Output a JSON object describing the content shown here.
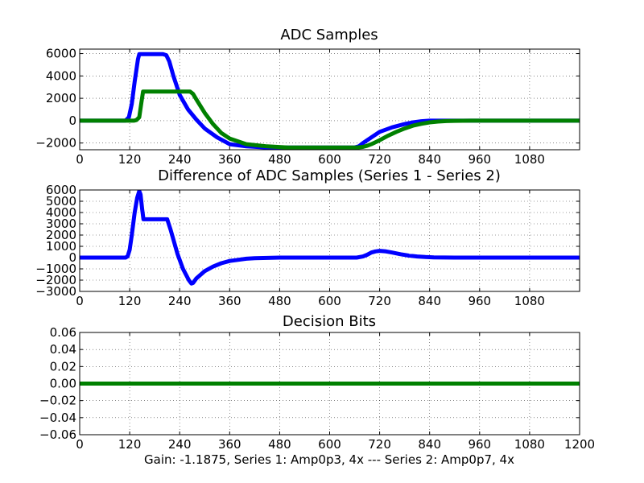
{
  "figure": {
    "xlabel": "Gain: -1.1875, Series 1: Amp0p3, 4x --- Series 2: Amp0p7, 4x"
  },
  "chart_data": [
    {
      "type": "line",
      "title": "ADC Samples",
      "xlim": [
        0,
        1200
      ],
      "ylim": [
        -2600,
        6400
      ],
      "xticks": [
        0,
        120,
        240,
        360,
        480,
        600,
        720,
        840,
        960,
        1080
      ],
      "xtick_labels": [
        "0",
        "120",
        "240",
        "360",
        "480",
        "600",
        "720",
        "840",
        "960",
        "1080"
      ],
      "yticks": [
        -2000,
        0,
        2000,
        4000,
        6000
      ],
      "ytick_labels": [
        "−2000",
        "0",
        "2000",
        "4000",
        "6000"
      ],
      "grid": true,
      "series": [
        {
          "name": "Series 1",
          "color": "#0000ff",
          "x": [
            0,
            110,
            118,
            125,
            132,
            140,
            143,
            150,
            170,
            200,
            208,
            215,
            225,
            240,
            260,
            280,
            300,
            330,
            360,
            400,
            450,
            500,
            560,
            620,
            660,
            670,
            680,
            700,
            720,
            750,
            780,
            800,
            820,
            840,
            860,
            880,
            900,
            1200
          ],
          "y": [
            0,
            0,
            300,
            1500,
            3500,
            5500,
            5950,
            5950,
            5950,
            5950,
            5850,
            5300,
            4000,
            2300,
            1000,
            100,
            -700,
            -1500,
            -2100,
            -2300,
            -2400,
            -2400,
            -2400,
            -2400,
            -2400,
            -2300,
            -2000,
            -1500,
            -1000,
            -600,
            -300,
            -150,
            -50,
            0,
            0,
            0,
            0,
            0
          ]
        },
        {
          "name": "Series 2",
          "color": "#008000",
          "x": [
            0,
            130,
            136,
            143,
            148,
            152,
            160,
            200,
            240,
            265,
            272,
            280,
            300,
            320,
            340,
            360,
            400,
            450,
            500,
            560,
            620,
            665,
            680,
            690,
            700,
            720,
            740,
            760,
            780,
            800,
            820,
            840,
            860,
            880,
            900,
            940,
            1200
          ],
          "y": [
            0,
            0,
            50,
            300,
            1600,
            2600,
            2600,
            2600,
            2600,
            2600,
            2400,
            1900,
            700,
            -300,
            -1100,
            -1600,
            -2100,
            -2300,
            -2400,
            -2400,
            -2400,
            -2400,
            -2350,
            -2250,
            -2100,
            -1750,
            -1350,
            -1000,
            -700,
            -450,
            -280,
            -150,
            -80,
            -40,
            -15,
            0,
            0
          ]
        }
      ]
    },
    {
      "type": "line",
      "title": "Difference of ADC Samples (Series 1 - Series 2)",
      "xlim": [
        0,
        1200
      ],
      "ylim": [
        -3000,
        6000
      ],
      "xticks": [
        0,
        120,
        240,
        360,
        480,
        600,
        720,
        840,
        960,
        1080
      ],
      "xtick_labels": [
        "0",
        "120",
        "240",
        "360",
        "480",
        "600",
        "720",
        "840",
        "960",
        "1080"
      ],
      "yticks": [
        -3000,
        -2000,
        -1000,
        0,
        1000,
        2000,
        3000,
        4000,
        5000,
        6000
      ],
      "ytick_labels": [
        "−3000",
        "−2000",
        "−1000",
        "0",
        "1000",
        "2000",
        "3000",
        "4000",
        "5000",
        "6000"
      ],
      "grid": true,
      "series": [
        {
          "name": "Series 1 - Series 2",
          "color": "#0000ff",
          "x": [
            0,
            110,
            115,
            120,
            125,
            132,
            138,
            143,
            146,
            150,
            153,
            160,
            180,
            210,
            218,
            225,
            235,
            248,
            262,
            268,
            272,
            280,
            300,
            320,
            340,
            360,
            380,
            400,
            420,
            480,
            600,
            665,
            680,
            690,
            700,
            710,
            720,
            735,
            750,
            770,
            790,
            810,
            830,
            850,
            900,
            1200
          ],
          "y": [
            0,
            0,
            100,
            700,
            2000,
            4000,
            5300,
            5900,
            5600,
            4300,
            3400,
            3400,
            3400,
            3400,
            2500,
            1600,
            300,
            -1000,
            -2000,
            -2300,
            -2250,
            -1850,
            -1200,
            -800,
            -500,
            -300,
            -200,
            -100,
            -50,
            0,
            0,
            0,
            100,
            250,
            450,
            550,
            600,
            550,
            450,
            300,
            180,
            100,
            50,
            20,
            0,
            0
          ]
        }
      ]
    },
    {
      "type": "line",
      "title": "Decision Bits",
      "xlim": [
        0,
        1200
      ],
      "ylim": [
        -0.06,
        0.06
      ],
      "xticks": [
        0,
        120,
        240,
        360,
        480,
        600,
        720,
        840,
        960,
        1080,
        1200
      ],
      "xtick_labels": [
        "0",
        "120",
        "240",
        "360",
        "480",
        "600",
        "720",
        "840",
        "960",
        "1080",
        "1200"
      ],
      "yticks": [
        -0.06,
        -0.04,
        -0.02,
        0,
        0.02,
        0.04,
        0.06
      ],
      "ytick_labels": [
        "−0.06",
        "−0.04",
        "−0.02",
        "0.00",
        "0.02",
        "0.04",
        "0.06"
      ],
      "grid": true,
      "series": [
        {
          "name": "Decision",
          "color": "#008000",
          "x": [
            0,
            1200
          ],
          "y": [
            0,
            0
          ]
        }
      ]
    }
  ]
}
